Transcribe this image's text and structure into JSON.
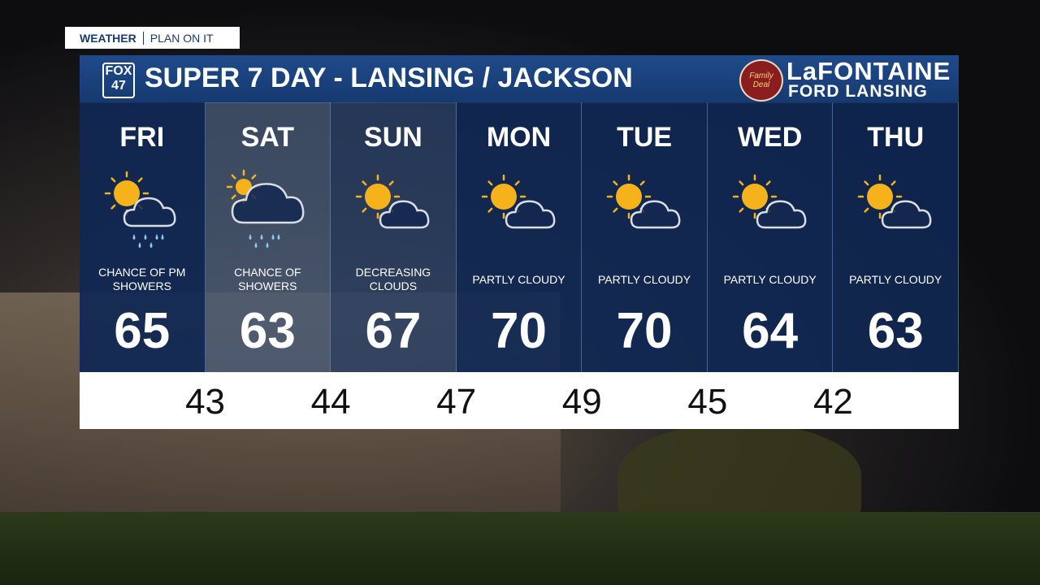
{
  "tag": {
    "left": "WEATHER",
    "right": "PLAN ON IT"
  },
  "header": {
    "logo_top": "FOX",
    "logo_bottom": "47",
    "title": "SUPER 7 DAY - LANSING / JACKSON",
    "badge": "Family Deal",
    "sponsor_top": "LaFONTAINE",
    "sponsor_bottom": "FORD LANSING"
  },
  "days": [
    {
      "name": "FRI",
      "condition": "CHANCE OF PM SHOWERS",
      "high": 65
    },
    {
      "name": "SAT",
      "condition": "CHANCE OF SHOWERS",
      "high": 63
    },
    {
      "name": "SUN",
      "condition": "DECREASING CLOUDS",
      "high": 67
    },
    {
      "name": "MON",
      "condition": "PARTLY CLOUDY",
      "high": 70
    },
    {
      "name": "TUE",
      "condition": "PARTLY CLOUDY",
      "high": 70
    },
    {
      "name": "WED",
      "condition": "PARTLY CLOUDY",
      "high": 64
    },
    {
      "name": "THU",
      "condition": "PARTLY CLOUDY",
      "high": 63
    }
  ],
  "lows": [
    43,
    44,
    47,
    49,
    45,
    42
  ]
}
